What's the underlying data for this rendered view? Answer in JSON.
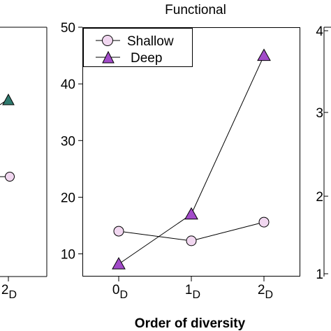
{
  "title": "Functional",
  "xlabel": "Order of diversity",
  "chart_data": [
    {
      "type": "line",
      "title": "Functional",
      "xlabel": "Order of diversity",
      "ylabel": "",
      "categories": [
        "0D",
        "1D",
        "2D"
      ],
      "tick_labels": [
        {
          "base": "0",
          "sub": "D"
        },
        {
          "base": "1",
          "sub": "D"
        },
        {
          "base": "2",
          "sub": "D"
        }
      ],
      "yticks": [
        10,
        20,
        30,
        40,
        50
      ],
      "ylim": [
        6,
        50
      ],
      "legend_position": "top-left",
      "series": [
        {
          "name": "Shallow",
          "values": [
            14.0,
            12.3,
            15.6
          ],
          "marker": "circle",
          "color": "#f1d7f0"
        },
        {
          "name": "Deep",
          "values": [
            8.2,
            17.0,
            45.0
          ],
          "marker": "triangle",
          "color": "#a24bc9"
        }
      ]
    },
    {
      "type": "line",
      "partial": "left panel (cropped)",
      "categories": [
        "2D"
      ],
      "tick_labels": [
        {
          "base": "2",
          "sub": "D"
        }
      ],
      "series": [
        {
          "values": [
            null
          ],
          "marker": "triangle",
          "color": "#2f7a6e"
        },
        {
          "values": [
            null
          ],
          "marker": "circle",
          "color": "#f1d7f0"
        }
      ]
    },
    {
      "type": "line",
      "partial": "right panel (cropped)",
      "yticks": [
        1,
        2,
        3,
        4
      ]
    }
  ]
}
